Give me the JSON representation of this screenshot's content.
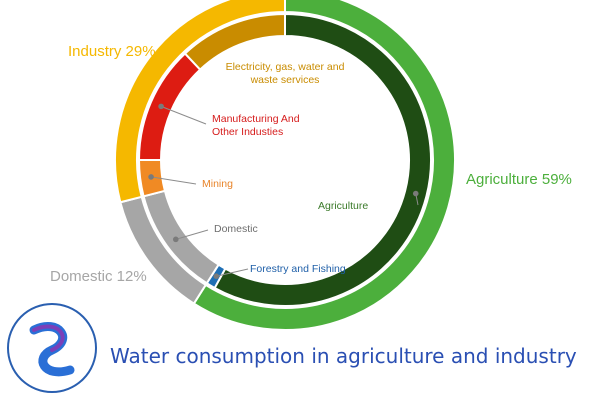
{
  "chart_data": {
    "type": "donut",
    "outer_ring": [
      {
        "label": "Agriculture 59%",
        "value": 59,
        "color": "#4caf3c"
      },
      {
        "label": "Domestic 12%",
        "value": 12,
        "color": "#a6a6a6"
      },
      {
        "label": "Industry 29%",
        "value": 29,
        "color": "#f5b800"
      }
    ],
    "inner_ring": [
      {
        "label": "Agriculture",
        "value": 58,
        "color": "#1f4d14",
        "label_color": "#3b7a2a"
      },
      {
        "label": "Forestry and Fishing",
        "value": 1,
        "color": "#1f6fb5",
        "label_color": "#1f5fa8"
      },
      {
        "label": "Domestic",
        "value": 12,
        "color": "#a6a6a6",
        "label_color": "#6e6e6e"
      },
      {
        "label": "Mining",
        "value": 4,
        "color": "#f08a24",
        "label_color": "#e8842a"
      },
      {
        "label": "Manufacturing And\nOther Industies",
        "value": 13,
        "color": "#dd1c12",
        "label_color": "#d61c1c"
      },
      {
        "label": "Electricity, gas, water and\nwaste services",
        "value": 12,
        "color": "#c98c00",
        "label_color": "#c98c00"
      }
    ]
  },
  "caption": "Water consumption in agriculture and industry",
  "logo": {
    "icon": "park-logo-icon"
  }
}
